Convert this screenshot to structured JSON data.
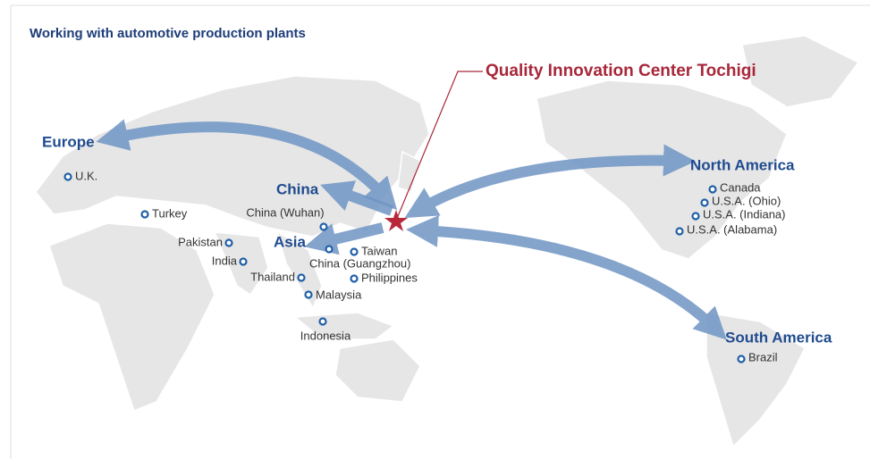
{
  "title": "Working with automotive production plants",
  "center": "Quality Innovation Center Tochigi",
  "regions": [
    "Europe",
    "China",
    "Asia",
    "North America",
    "South America"
  ],
  "locations": [
    "U.K.",
    "Turkey",
    "Pakistan",
    "India",
    "Thailand",
    "Malaysia",
    "Indonesia",
    "China (Wuhan)",
    "Taiwan",
    "China (Guangzhou)",
    "Philippines",
    "Canada",
    "U.S.A. (Ohio)",
    "U.S.A. (Indiana)",
    "U.S.A. (Alabama)",
    "Brazil"
  ]
}
